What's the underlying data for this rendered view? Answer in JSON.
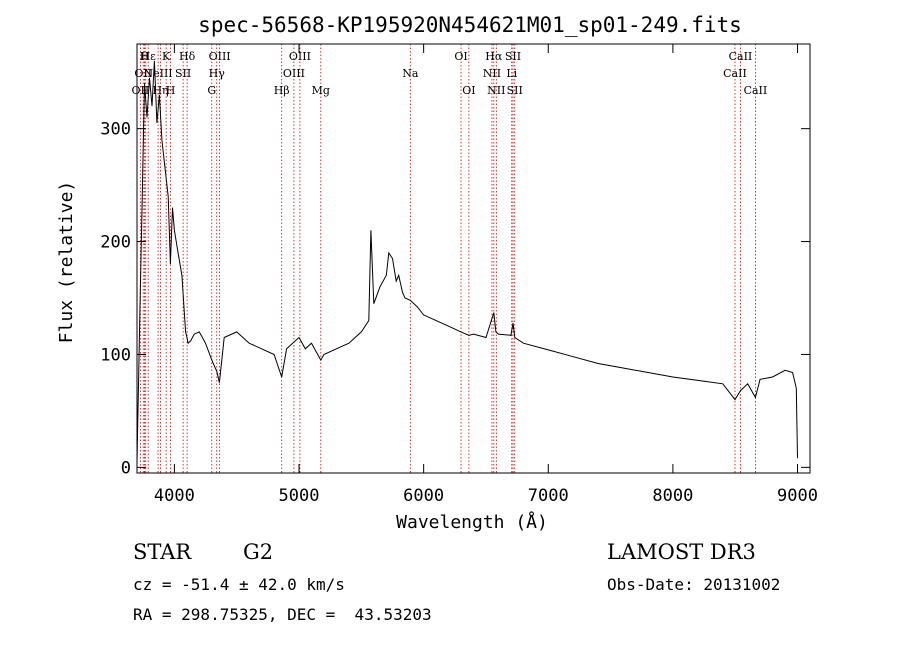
{
  "chart_data": {
    "type": "line",
    "title": "spec-56568-KP195920N454621M01_sp01-249.fits",
    "xlabel": "Wavelength (Å)",
    "ylabel": "Flux (relative)",
    "xlim": [
      3700,
      9100
    ],
    "ylim": [
      -5,
      375
    ],
    "x_ticks": [
      4000,
      5000,
      6000,
      7000,
      8000,
      9000
    ],
    "y_ticks": [
      0,
      100,
      200,
      300
    ],
    "grid": false,
    "series": [
      {
        "x": [
          3700,
          3720,
          3740,
          3760,
          3780,
          3800,
          3820,
          3840,
          3860,
          3880,
          3900,
          3920,
          3935,
          3950,
          3968,
          3985,
          4000,
          4030,
          4060,
          4090,
          4101,
          4110,
          4130,
          4160,
          4200,
          4250,
          4300,
          4340,
          4361,
          4400,
          4500,
          4600,
          4700,
          4800,
          4861,
          4900,
          5000,
          5050,
          5100,
          5175,
          5200,
          5300,
          5400,
          5500,
          5560,
          5577,
          5600,
          5650,
          5700,
          5720,
          5750,
          5780,
          5800,
          5830,
          5850,
          5893,
          5950,
          6000,
          6100,
          6200,
          6300,
          6363,
          6400,
          6500,
          6563,
          6580,
          6600,
          6700,
          6717,
          6731,
          6800,
          7000,
          7200,
          7400,
          7600,
          7800,
          8000,
          8200,
          8400,
          8498,
          8542,
          8600,
          8662,
          8700,
          8800,
          8900,
          8960,
          8990,
          9000
        ],
        "y": [
          5,
          120,
          230,
          340,
          310,
          345,
          320,
          360,
          305,
          330,
          290,
          270,
          255,
          240,
          180,
          230,
          210,
          190,
          170,
          120,
          115,
          110,
          112,
          118,
          120,
          110,
          95,
          85,
          75,
          115,
          120,
          110,
          105,
          100,
          80,
          105,
          115,
          105,
          110,
          95,
          100,
          105,
          110,
          120,
          130,
          210,
          145,
          160,
          170,
          190,
          185,
          165,
          170,
          155,
          150,
          148,
          142,
          135,
          130,
          125,
          120,
          117,
          118,
          115,
          137,
          120,
          118,
          117,
          128,
          115,
          110,
          104,
          98,
          92,
          88,
          84,
          80,
          77,
          74,
          60,
          68,
          74,
          62,
          78,
          80,
          86,
          84,
          70,
          8
        ]
      }
    ],
    "lines": [
      {
        "wl": 3727,
        "label": "OII",
        "row": 3
      },
      {
        "wl": 3750,
        "label": "OII",
        "row": 2
      },
      {
        "wl": 3760,
        "label": "H",
        "row": 1
      },
      {
        "wl": 3770,
        "label": "I",
        "row": 2
      },
      {
        "wl": 3790,
        "label": "Hε",
        "row": 1
      },
      {
        "wl": 3869,
        "label": "NeIII",
        "row": 2
      },
      {
        "wl": 3889,
        "label": "Hη",
        "row": 3
      },
      {
        "wl": 3934,
        "label": "K",
        "row": 1
      },
      {
        "wl": 3969,
        "label": "H",
        "row": 3
      },
      {
        "wl": 4070,
        "label": "SII",
        "row": 2
      },
      {
        "wl": 4102,
        "label": "Hδ",
        "row": 1
      },
      {
        "wl": 4300,
        "label": "G",
        "row": 3
      },
      {
        "wl": 4340,
        "label": "Hγ",
        "row": 2
      },
      {
        "wl": 4363,
        "label": "OIII",
        "row": 1
      },
      {
        "wl": 4861,
        "label": "Hβ",
        "row": 3
      },
      {
        "wl": 4959,
        "label": "OIII",
        "row": 2
      },
      {
        "wl": 5007,
        "label": "OIII",
        "row": 1
      },
      {
        "wl": 5175,
        "label": "Mg",
        "row": 3
      },
      {
        "wl": 5893,
        "label": "Na",
        "row": 2
      },
      {
        "wl": 6300,
        "label": "OI",
        "row": 1
      },
      {
        "wl": 6363,
        "label": "OI",
        "row": 3
      },
      {
        "wl": 6548,
        "label": "NII",
        "row": 2
      },
      {
        "wl": 6563,
        "label": "Hα",
        "row": 1
      },
      {
        "wl": 6583,
        "label": "NII",
        "row": 3
      },
      {
        "wl": 6707,
        "label": "Li",
        "row": 2
      },
      {
        "wl": 6717,
        "label": "SII",
        "row": 1
      },
      {
        "wl": 6731,
        "label": "SII",
        "row": 3
      },
      {
        "wl": 8498,
        "label": "CaII",
        "row": 2
      },
      {
        "wl": 8542,
        "label": "CaII",
        "row": 1
      },
      {
        "wl": 8662,
        "label": "CaII",
        "row": 3
      }
    ],
    "colors": {
      "spectrum": "#000000",
      "line_marker": "#cc0000",
      "frame": "#000000"
    }
  },
  "info": {
    "object_class": "STAR",
    "subclass": "G2",
    "survey": "LAMOST DR3",
    "cz": "cz = -51.4 ± 42.0 km/s",
    "obs_date": "Obs-Date: 20131002",
    "coords": "RA = 298.75325, DEC =  43.53203"
  }
}
